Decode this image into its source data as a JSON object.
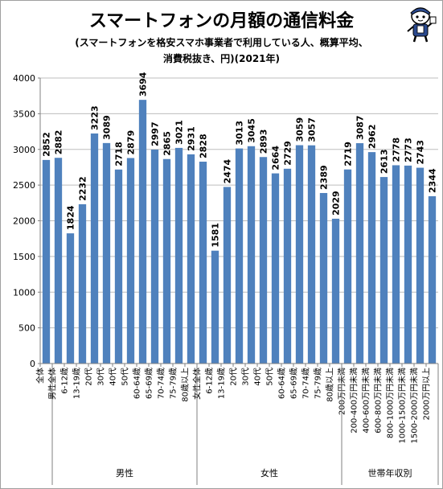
{
  "chart_data": {
    "type": "bar",
    "title": "スマートフォンの月額の通信料金",
    "subtitle_line1": "(スマートフォンを格安スマホ事業者で利用している人、概算平均、",
    "subtitle_line2": "消費税抜き、円)(2021年)",
    "categories": [
      "全体",
      "男性全体",
      "6-12歳",
      "13-19歳",
      "20代",
      "30代",
      "40代",
      "50代",
      "60-64歳",
      "65-69歳",
      "70-74歳",
      "75-79歳",
      "80歳以上",
      "女性全体",
      "6-12歳",
      "13-19歳",
      "20代",
      "30代",
      "40代",
      "50代",
      "60-64歳",
      "65-69歳",
      "70-74歳",
      "75-79歳",
      "80歳以上",
      "200万円未満",
      "200-400万円未満",
      "400-600万円未満",
      "600-800万円未満",
      "800-1000万円未満",
      "1000-1500万円未満",
      "1500-2000万円未満",
      "2000万円以上"
    ],
    "values": [
      2852,
      2882,
      1824,
      2232,
      3223,
      3089,
      2718,
      2879,
      3694,
      2997,
      2865,
      3021,
      2931,
      2828,
      1581,
      2474,
      3013,
      3045,
      2893,
      2664,
      2729,
      3059,
      3057,
      2389,
      2029,
      2719,
      3087,
      2962,
      2613,
      2778,
      2773,
      2743,
      2344
    ],
    "ylim": [
      0,
      4000
    ],
    "yticks": [
      0,
      500,
      1000,
      1500,
      2000,
      2500,
      3000,
      3500,
      4000
    ],
    "groups": [
      {
        "label": "男性",
        "start": 1,
        "end": 12
      },
      {
        "label": "女性",
        "start": 13,
        "end": 24
      },
      {
        "label": "世帯年収別",
        "start": 25,
        "end": 32
      }
    ],
    "grid": true,
    "legend": "none",
    "bar_color": "#4f81bd"
  }
}
